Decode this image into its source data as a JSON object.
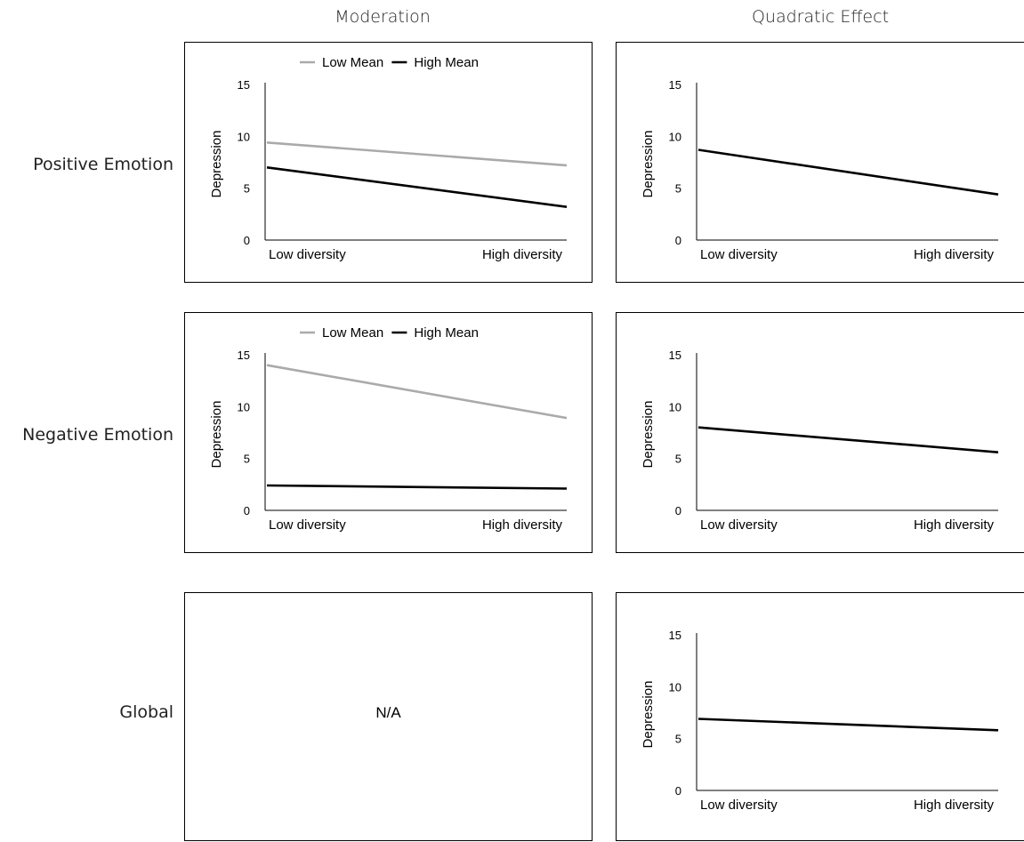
{
  "column_titles": [
    "Moderation",
    "Quadratic Effect"
  ],
  "row_labels": [
    "Positive Emotion",
    "Negative Emotion",
    "Global"
  ],
  "na_label": "N/A",
  "colors": {
    "low_mean": "#aaaaaa",
    "high_mean": "#000000"
  },
  "chart_data": [
    {
      "type": "line",
      "row": "Positive Emotion",
      "column": "Moderation",
      "categories": [
        "Low diversity",
        "High diversity"
      ],
      "ylabel": "Depression",
      "ylim": [
        0,
        15
      ],
      "yticks": [
        0,
        5,
        10,
        15
      ],
      "legend": "top-center",
      "series": [
        {
          "name": "Low Mean",
          "values": [
            9.4,
            7.2
          ],
          "color": "#aaaaaa"
        },
        {
          "name": "High Mean",
          "values": [
            7.0,
            3.2
          ],
          "color": "#000000"
        }
      ]
    },
    {
      "type": "line",
      "row": "Positive Emotion",
      "column": "Quadratic Effect",
      "categories": [
        "Low diversity",
        "High diversity"
      ],
      "ylabel": "Depression",
      "ylim": [
        0,
        15
      ],
      "yticks": [
        0,
        5,
        10,
        15
      ],
      "series": [
        {
          "values": [
            8.7,
            4.4
          ],
          "color": "#000000"
        }
      ]
    },
    {
      "type": "line",
      "row": "Negative Emotion",
      "column": "Moderation",
      "categories": [
        "Low diversity",
        "High diversity"
      ],
      "ylabel": "Depression",
      "ylim": [
        0,
        15
      ],
      "yticks": [
        0,
        5,
        10,
        15
      ],
      "legend": "top-center",
      "series": [
        {
          "name": "Low Mean",
          "values": [
            14.0,
            8.9
          ],
          "color": "#aaaaaa"
        },
        {
          "name": "High Mean",
          "values": [
            2.4,
            2.1
          ],
          "color": "#000000"
        }
      ]
    },
    {
      "type": "line",
      "row": "Negative Emotion",
      "column": "Quadratic Effect",
      "categories": [
        "Low diversity",
        "High diversity"
      ],
      "ylabel": "Depression",
      "ylim": [
        0,
        15
      ],
      "yticks": [
        0,
        5,
        10,
        15
      ],
      "series": [
        {
          "values": [
            8.0,
            5.6
          ],
          "color": "#000000"
        }
      ]
    },
    {
      "type": "line",
      "row": "Global",
      "column": "Quadratic Effect",
      "categories": [
        "Low diversity",
        "High diversity"
      ],
      "ylabel": "Depression",
      "ylim": [
        0,
        15
      ],
      "yticks": [
        0,
        5,
        10,
        15
      ],
      "series": [
        {
          "values": [
            6.9,
            5.8
          ],
          "color": "#000000"
        }
      ]
    }
  ]
}
